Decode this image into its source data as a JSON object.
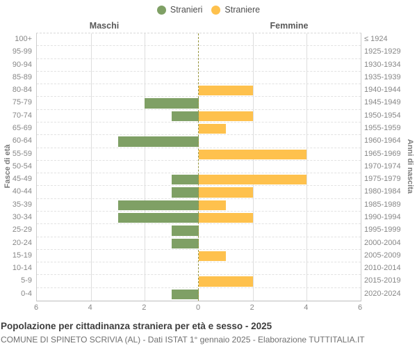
{
  "legend": {
    "items": [
      {
        "label": "Stranieri",
        "color": "#7fa065"
      },
      {
        "label": "Straniere",
        "color": "#fec14d"
      }
    ]
  },
  "headers": {
    "left": "Maschi",
    "right": "Femmine"
  },
  "axis": {
    "left_title": "Fasce di età",
    "right_title": "Anni di nascita",
    "x_ticks": [
      "6",
      "4",
      "2",
      "0",
      "2",
      "4",
      "6"
    ]
  },
  "footer": {
    "title": "Popolazione per cittadinanza straniera per età e sesso - 2025",
    "subtitle": "COMUNE DI SPINETO SCRIVIA (AL) - Dati ISTAT 1° gennaio 2025 - Elaborazione TUTTITALIA.IT"
  },
  "colors": {
    "male_bar": "#7fa065",
    "female_bar": "#fec14d",
    "center_line": "#96943c",
    "gridline": "#dddddd",
    "label_text": "#878787"
  },
  "chart_data": {
    "type": "bar",
    "subtype": "population-pyramid",
    "title": "Popolazione per cittadinanza straniera per età e sesso - 2025",
    "legend_position": "top",
    "grid": true,
    "xlim": [
      0,
      6
    ],
    "x_tick_values": [
      6,
      4,
      2,
      0,
      2,
      4,
      6
    ],
    "categories_age": [
      "100+",
      "95-99",
      "90-94",
      "85-89",
      "80-84",
      "75-79",
      "70-74",
      "65-69",
      "60-64",
      "55-59",
      "50-54",
      "45-49",
      "40-44",
      "35-39",
      "30-34",
      "25-29",
      "20-24",
      "15-19",
      "10-14",
      "5-9",
      "0-4"
    ],
    "categories_birth_years": [
      "≤ 1924",
      "1925-1929",
      "1930-1934",
      "1935-1939",
      "1940-1944",
      "1945-1949",
      "1950-1954",
      "1955-1959",
      "1960-1964",
      "1965-1969",
      "1970-1974",
      "1975-1979",
      "1980-1984",
      "1985-1989",
      "1990-1994",
      "1995-1999",
      "2000-2004",
      "2005-2009",
      "2010-2014",
      "2015-2019",
      "2020-2024"
    ],
    "series": [
      {
        "name": "Stranieri",
        "sex": "Maschi",
        "side": "left",
        "color": "#7fa065",
        "values": [
          0,
          0,
          0,
          0,
          0,
          2,
          1,
          0,
          3,
          0,
          0,
          1,
          1,
          3,
          3,
          1,
          1,
          0,
          0,
          0,
          1
        ]
      },
      {
        "name": "Straniere",
        "sex": "Femmine",
        "side": "right",
        "color": "#fec14d",
        "values": [
          0,
          0,
          0,
          0,
          2,
          0,
          2,
          1,
          0,
          4,
          0,
          4,
          2,
          1,
          2,
          0,
          0,
          1,
          0,
          2,
          0
        ]
      }
    ]
  }
}
